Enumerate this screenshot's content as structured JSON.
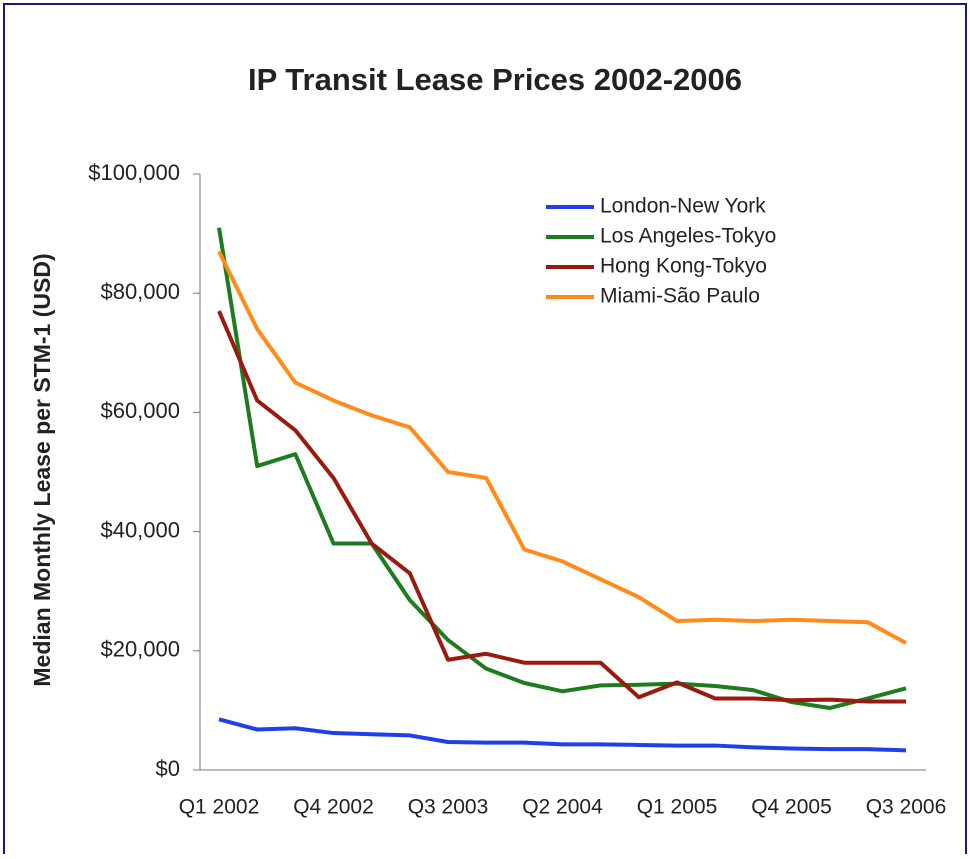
{
  "chart_data": {
    "type": "line",
    "title": "IP Transit Lease Prices 2002-2006",
    "ylabel": "Median Monthly Lease per STM-1 (USD)",
    "categories": [
      "Q1 2002",
      null,
      null,
      "Q4 2002",
      null,
      null,
      "Q3 2003",
      null,
      null,
      "Q2 2004",
      null,
      null,
      "Q1 2005",
      null,
      null,
      "Q4 2005",
      null,
      null,
      "Q3 2006"
    ],
    "series": [
      {
        "name": "London-New York",
        "color": "#1f3fe8",
        "values": [
          8500,
          6800,
          7000,
          6200,
          6000,
          5800,
          4700,
          4600,
          4600,
          4300,
          4300,
          4200,
          4100,
          4100,
          3800,
          3600,
          3500,
          3500,
          3300
        ]
      },
      {
        "name": "Los Angeles-Tokyo",
        "color": "#1e7b1e",
        "values": [
          91000,
          51000,
          53000,
          38000,
          38000,
          28500,
          21800,
          17000,
          14600,
          13200,
          14200,
          14300,
          14500,
          14100,
          13400,
          11400,
          10400,
          12000,
          13700
        ]
      },
      {
        "name": "Hong Kong-Tokyo",
        "color": "#9a1a10",
        "values": [
          77000,
          62000,
          57000,
          49000,
          38000,
          33000,
          18500,
          19500,
          18000,
          18000,
          18000,
          12200,
          14700,
          12000,
          12000,
          11700,
          11800,
          11500,
          11500
        ]
      },
      {
        "name": "Miami-São Paulo",
        "color": "#ff8c1a",
        "values": [
          87000,
          74000,
          65000,
          62000,
          59500,
          57500,
          50000,
          49000,
          37000,
          35000,
          32000,
          29000,
          25000,
          25200,
          25000,
          25200,
          25000,
          24800,
          21300
        ]
      }
    ],
    "ylim": [
      0,
      100000
    ],
    "yticks": [
      {
        "value": 0,
        "label": "$0"
      },
      {
        "value": 20000,
        "label": "$20,000"
      },
      {
        "value": 40000,
        "label": "$40,000"
      },
      {
        "value": 60000,
        "label": "$60,000"
      },
      {
        "value": 80000,
        "label": "$80,000"
      },
      {
        "value": 100000,
        "label": "$100,000"
      }
    ],
    "legend": "upper right"
  }
}
